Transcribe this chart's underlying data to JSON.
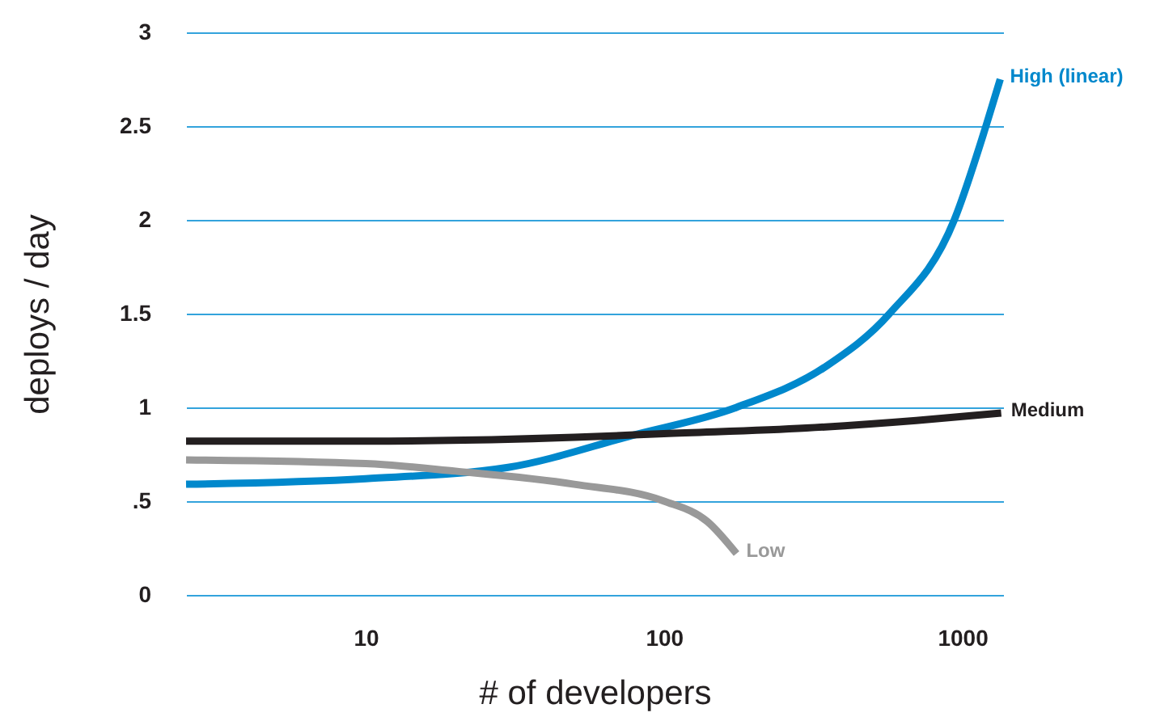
{
  "chart_data": {
    "type": "line",
    "xlabel": "# of developers",
    "ylabel": "deploys / day",
    "log": "x",
    "grid": "y",
    "line_style": "solid",
    "marker": "none",
    "xlim": [
      2.5,
      1370
    ],
    "xticks": [
      10,
      100,
      1000
    ],
    "ylim": [
      0,
      3
    ],
    "yticks": [
      0,
      {
        "value": 0.5,
        "label": ".5"
      },
      1,
      1.5,
      2,
      2.5,
      3
    ],
    "series": [
      {
        "name": "High (linear)",
        "color": "#0088cc",
        "x": [
          2.5,
          10,
          30,
          78,
          175,
          350,
          570,
          940,
          1200,
          1340
        ],
        "values": [
          0.59,
          0.62,
          0.68,
          0.85,
          1.0,
          1.22,
          1.5,
          2.0,
          2.5,
          2.75
        ]
      },
      {
        "name": "Medium",
        "color": "#231f20",
        "x": [
          2.5,
          10,
          50,
          100,
          300,
          700,
          1350
        ],
        "values": [
          0.82,
          0.82,
          0.84,
          0.86,
          0.89,
          0.93,
          0.97
        ]
      },
      {
        "name": "Low",
        "color": "#999999",
        "x": [
          2.5,
          10,
          20,
          50,
          100,
          140,
          175
        ],
        "values": [
          0.72,
          0.7,
          0.66,
          0.59,
          0.5,
          0.39,
          0.22
        ]
      }
    ]
  }
}
